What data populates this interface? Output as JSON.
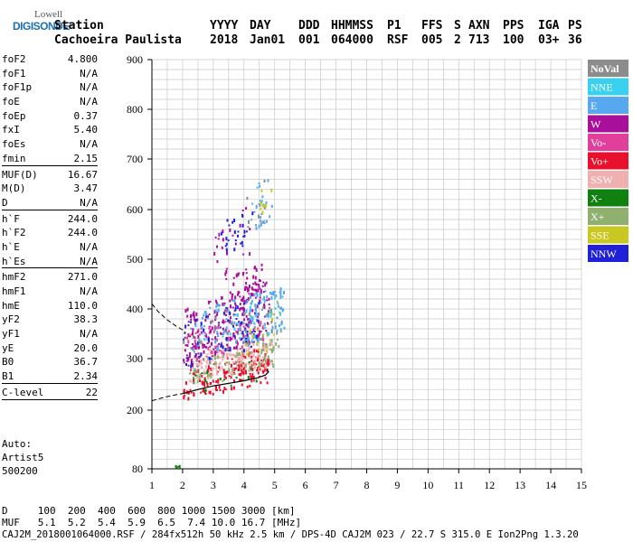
{
  "logo": {
    "line1": "Lowell",
    "line2": "DIGISONDE"
  },
  "header": {
    "row1": [
      "Station",
      "YYYY",
      "DAY",
      "DDD",
      "HHMMSS",
      "P1",
      "FFS",
      "S",
      "AXN",
      "PPS",
      "IGA",
      "PS"
    ],
    "row2": [
      "Cachoeira Paulista",
      "2018",
      "Jan01",
      "001",
      "064000",
      "RSF",
      "005",
      "2",
      "713",
      "100",
      "03+",
      "36"
    ]
  },
  "params": [
    {
      "k": "foF2",
      "v": "4.800"
    },
    {
      "k": "foF1",
      "v": "N/A"
    },
    {
      "k": "foF1p",
      "v": "N/A"
    },
    {
      "k": "foE",
      "v": "N/A"
    },
    {
      "k": "foEp",
      "v": "0.37"
    },
    {
      "k": "fxI",
      "v": "5.40"
    },
    {
      "k": "foEs",
      "v": "N/A"
    },
    {
      "k": "fmin",
      "v": "2.15",
      "sep": true
    },
    {
      "k": "MUF(D)",
      "v": "16.67"
    },
    {
      "k": "M(D)",
      "v": "3.47"
    },
    {
      "k": "D",
      "v": "N/A",
      "sep": true
    },
    {
      "k": "h`F",
      "v": "244.0"
    },
    {
      "k": "h`F2",
      "v": "244.0"
    },
    {
      "k": "h`E",
      "v": "N/A"
    },
    {
      "k": "h`Es",
      "v": "N/A",
      "sep": true
    },
    {
      "k": "hmF2",
      "v": "271.0"
    },
    {
      "k": "hmF1",
      "v": "N/A"
    },
    {
      "k": "hmE",
      "v": "110.0"
    },
    {
      "k": "yF2",
      "v": "38.3"
    },
    {
      "k": "yF1",
      "v": "N/A"
    },
    {
      "k": "yE",
      "v": "20.0"
    },
    {
      "k": "B0",
      "v": "36.7"
    },
    {
      "k": "B1",
      "v": "2.34",
      "sep": true
    },
    {
      "k": "C-level",
      "v": "22",
      "sep": true
    }
  ],
  "auto": {
    "l1": "Auto:",
    "l2": "Artist5",
    "l3": "500200"
  },
  "footer": {
    "d_row": "D     100  200  400  600  800 1000 1500 3000 [km]",
    "muf_row": "MUF   5.1  5.2  5.4  5.9  6.5  7.4 10.0 16.7 [MHz]",
    "info": "CAJ2M_2018001064000.RSF / 284fx512h 50 kHz 2.5 km / DPS-4D CAJ2M 023 / 22.7 S 315.0 E Ion2Png 1.3.20"
  },
  "legend": [
    {
      "label": "NoVal",
      "color": "#8c8c8c"
    },
    {
      "label": "NNE",
      "color": "#3ad0f0"
    },
    {
      "label": "E",
      "color": "#58a8f0"
    },
    {
      "label": "W",
      "color": "#a8109c"
    },
    {
      "label": "Vo-",
      "color": "#e0409c"
    },
    {
      "label": "Vo+",
      "color": "#e8102c"
    },
    {
      "label": "SSW",
      "color": "#f0b0b0"
    },
    {
      "label": "X-",
      "color": "#108010"
    },
    {
      "label": "X+",
      "color": "#90b070"
    },
    {
      "label": "SSE",
      "color": "#c8c820"
    },
    {
      "label": "NNW",
      "color": "#2020d8"
    }
  ],
  "chart_data": {
    "type": "scatter",
    "title": "",
    "xlabel": "",
    "ylabel": "",
    "x_ticks": [
      1,
      2,
      3,
      4,
      5,
      6,
      7,
      8,
      9,
      10,
      11,
      12,
      13,
      14,
      15
    ],
    "y_ticks": [
      80,
      200,
      300,
      400,
      500,
      600,
      700,
      800,
      900
    ],
    "xlim": [
      1,
      15
    ],
    "ylim": [
      80,
      900
    ],
    "grid": true,
    "legend_placement": "right",
    "series": [
      {
        "name": "Vo+",
        "color": "#e8102c",
        "clusters": [
          {
            "x": [
              2.0,
              4.8
            ],
            "y": [
              235,
              300
            ],
            "n": 140
          },
          {
            "x": [
              3.4,
              4.7
            ],
            "y": [
              270,
              320
            ],
            "n": 40
          }
        ]
      },
      {
        "name": "SSW",
        "color": "#f0b0b0",
        "clusters": [
          {
            "x": [
              2.2,
              4.9
            ],
            "y": [
              270,
              330
            ],
            "n": 140
          }
        ]
      },
      {
        "name": "X+",
        "color": "#90b070",
        "clusters": [
          {
            "x": [
              2.2,
              5.1
            ],
            "y": [
              255,
              320
            ],
            "n": 60
          },
          {
            "x": [
              4.4,
              5.2
            ],
            "y": [
              300,
              410
            ],
            "n": 30
          }
        ]
      },
      {
        "name": "X-",
        "color": "#108010",
        "clusters": [
          {
            "x": [
              1.75,
              1.9
            ],
            "y": [
              85,
              90
            ],
            "n": 5
          },
          {
            "x": [
              2.3,
              4.5
            ],
            "y": [
              245,
              290
            ],
            "n": 15
          }
        ]
      },
      {
        "name": "Vo-",
        "color": "#e0409c",
        "clusters": [
          {
            "x": [
              2.1,
              4.6
            ],
            "y": [
              310,
              380
            ],
            "n": 80
          }
        ]
      },
      {
        "name": "W",
        "color": "#a8109c",
        "clusters": [
          {
            "x": [
              2.0,
              4.8
            ],
            "y": [
              310,
              440
            ],
            "n": 220
          },
          {
            "x": [
              3.6,
              4.6
            ],
            "y": [
              420,
              490
            ],
            "n": 40
          },
          {
            "x": [
              3.0,
              4.2
            ],
            "y": [
              450,
              590
            ],
            "n": 25
          }
        ]
      },
      {
        "name": "E",
        "color": "#58a8f0",
        "clusters": [
          {
            "x": [
              2.3,
              5.3
            ],
            "y": [
              320,
              430
            ],
            "n": 140
          },
          {
            "x": [
              4.2,
              4.9
            ],
            "y": [
              560,
              670
            ],
            "n": 25
          }
        ]
      },
      {
        "name": "NNE",
        "color": "#3ad0f0",
        "clusters": [
          {
            "x": [
              3.5,
              5.2
            ],
            "y": [
              330,
              420
            ],
            "n": 30
          }
        ]
      },
      {
        "name": "NNW",
        "color": "#2020d8",
        "clusters": [
          {
            "x": [
              2.0,
              4.6
            ],
            "y": [
              295,
              410
            ],
            "n": 60
          },
          {
            "x": [
              3.2,
              4.4
            ],
            "y": [
              520,
              600
            ],
            "n": 25
          }
        ]
      },
      {
        "name": "SSE",
        "color": "#c8c820",
        "clusters": [
          {
            "x": [
              4.0,
              5.0
            ],
            "y": [
              300,
              380
            ],
            "n": 15
          },
          {
            "x": [
              4.5,
              4.9
            ],
            "y": [
              590,
              660
            ],
            "n": 8
          }
        ]
      },
      {
        "name": "NoVal",
        "color": "#8c8c8c",
        "clusters": [
          {
            "x": [
              2.0,
              5.0
            ],
            "y": [
              280,
              420
            ],
            "n": 40
          },
          {
            "x": [
              4.0,
              4.8
            ],
            "y": [
              560,
              650
            ],
            "n": 10
          }
        ]
      }
    ],
    "dashed_curve": [
      [
        1.0,
        410
      ],
      [
        1.2,
        395
      ],
      [
        1.5,
        378
      ],
      [
        1.8,
        365
      ],
      [
        2.0,
        358
      ],
      [
        2.1,
        352
      ]
    ],
    "dashed_curve_lower": [
      [
        1.0,
        218
      ],
      [
        1.4,
        225
      ],
      [
        1.8,
        230
      ],
      [
        2.0,
        232
      ]
    ],
    "solid_curve": [
      [
        2.0,
        232
      ],
      [
        2.5,
        240
      ],
      [
        3.0,
        247
      ],
      [
        3.5,
        252
      ],
      [
        4.0,
        257
      ],
      [
        4.4,
        262
      ],
      [
        4.7,
        268
      ],
      [
        4.8,
        274
      ],
      [
        4.75,
        280
      ]
    ]
  }
}
